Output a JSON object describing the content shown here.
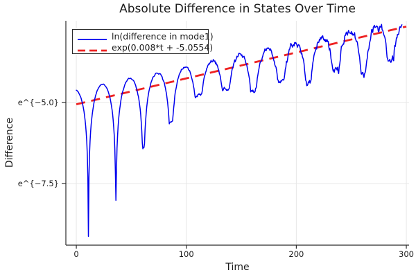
{
  "title": "Absolute Difference in States Over Time",
  "colors": {
    "series_blue": "#0000ee",
    "series_red": "#ee2222",
    "axis": "#2b2b2b",
    "grid": "#e7e7e7",
    "text": "#1c1c1c"
  },
  "legend": {
    "entries": [
      {
        "label": "ln(difference in mode1)",
        "color": "#0000ee",
        "style": "solid"
      },
      {
        "label": "exp(0.008*t + -5.0554)",
        "color": "#ee2222",
        "style": "dashed"
      }
    ]
  },
  "chart_data": {
    "type": "line",
    "title": "Absolute Difference in States Over Time",
    "xlabel": "Time",
    "ylabel": "Difference",
    "y_scale": "ln",
    "xlim": [
      -9.5,
      302.5
    ],
    "ylim_ln": [
      -9.4,
      -2.478
    ],
    "x_ticks": [
      {
        "t": 0,
        "label": "0"
      },
      {
        "t": 100,
        "label": "100"
      },
      {
        "t": 200,
        "label": "200"
      },
      {
        "t": 300,
        "label": "300"
      }
    ],
    "y_ticks": [
      {
        "v": -5.0,
        "label": "e^{−5.0}"
      },
      {
        "v": -7.5,
        "label": "e^{−7.5}"
      }
    ],
    "grid": true,
    "legend_position": "top-left",
    "series": [
      {
        "name": "ln(difference in mode1)",
        "color": "#0000ee",
        "width": 1.5,
        "style": "solid",
        "model": {
          "description": "ln|difference| = slope*t + intercept + peak_offset(t) + max(ln|sin(pi*(t-first_cusp_t)/beat_period)|, cusp_depth(t)) + noise(t)",
          "slope": 0.008,
          "intercept": -5.0554,
          "peak_offset_start": 0.45,
          "peak_offset_end": 0.2,
          "beat_period": 25,
          "first_cusp_t": 11,
          "cusp_depths": [
            [
              0,
              -5.2
            ],
            [
              11,
              -4.6
            ],
            [
              36,
              -3.68
            ],
            [
              61,
              -2.2
            ],
            [
              86,
              -1.6
            ],
            [
              111,
              -0.95
            ],
            [
              136,
              -0.95
            ],
            [
              161,
              -1.2
            ],
            [
              186,
              -1.05
            ],
            [
              211,
              -1.3
            ],
            [
              236,
              -1.1
            ],
            [
              261,
              -1.35
            ],
            [
              286,
              -1.15
            ],
            [
              300,
              -1.1
            ]
          ],
          "noise_base": 0.012,
          "noise_growth": 0.13,
          "noise_pow": 1.6,
          "noise_persistence": 0.45,
          "seed": 11,
          "t_start": 0,
          "t_end": 296,
          "dt": 0.5,
          "value_floor": -9.2
        },
        "key_points_ln": [
          {
            "t": 0,
            "ln": -4.62
          },
          {
            "t": 11,
            "ln": -9.15
          },
          {
            "t": 24,
            "ln": -4.41
          },
          {
            "t": 36,
            "ln": -8.0
          },
          {
            "t": 49,
            "ln": -4.2
          },
          {
            "t": 61,
            "ln": -6.1
          },
          {
            "t": 86,
            "ln": -5.4
          },
          {
            "t": 111,
            "ln": -4.7
          },
          {
            "t": 148,
            "ln": -3.5
          },
          {
            "t": 200,
            "ln": -3.1
          },
          {
            "t": 246,
            "ln": -4.0
          },
          {
            "t": 273,
            "ln": -2.69
          },
          {
            "t": 296,
            "ln": -2.6
          }
        ]
      },
      {
        "name": "exp(0.008*t + -5.0554)",
        "color": "#ee2222",
        "width": 2.8,
        "style": "dashed",
        "dash": [
          13,
          9
        ],
        "slope": 0.008,
        "intercept": -5.0554,
        "t_start": 0,
        "t_end": 300
      }
    ]
  },
  "axes": {
    "xlabel": "Time",
    "ylabel": "Difference"
  }
}
